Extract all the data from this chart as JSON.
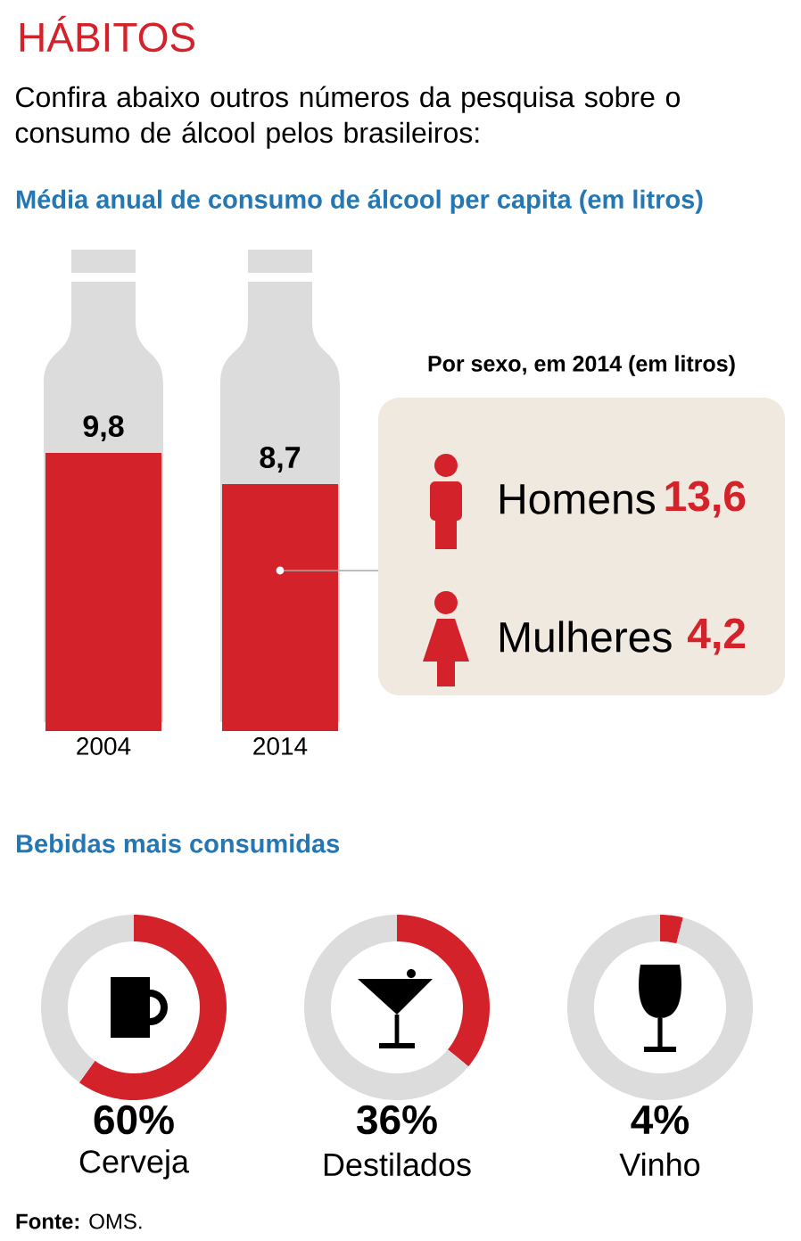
{
  "chart_data": [
    {
      "type": "other",
      "title": "HÁBITOS",
      "subtitle": "Confira abaixo outros números da pesquisa sobre o consumo de álcool pelos brasileiros:",
      "annotations": [
        "**Fonte:** OMS."
      ]
    },
    {
      "type": "bar",
      "title": "Média anual de consumo de álcool per capita (em litros)",
      "categories": [
        "2004",
        "2014"
      ],
      "values": [
        9.8,
        8.7
      ],
      "value_labels": [
        "9,8",
        "8,7"
      ],
      "color": "#d3222a",
      "tick_labels": "x"
    },
    {
      "type": "other",
      "title": "Por sexo, em 2014 (em litros)",
      "categories": [
        "Homens",
        "Mulheres"
      ],
      "values": [
        13.6,
        4.2
      ],
      "value_labels": [
        "13,6",
        "4,2"
      ]
    },
    {
      "type": "donut",
      "title": "Bebidas mais consumidas",
      "xlabel": "Cerveja",
      "categories": [
        null,
        null
      ],
      "values": [
        60,
        40
      ],
      "annotations": [
        "60%"
      ],
      "colors": [
        "#d3222a",
        "#dcdcdc"
      ]
    },
    {
      "type": "donut",
      "xlabel": "Destilados",
      "categories": [
        null,
        null
      ],
      "values": [
        36,
        64
      ],
      "annotations": [
        "36%"
      ],
      "colors": [
        "#d3222a",
        "#dcdcdc"
      ]
    },
    {
      "type": "donut",
      "xlabel": "Vinho",
      "categories": [
        null,
        null
      ],
      "values": [
        4,
        96
      ],
      "annotations": [
        "4%"
      ],
      "colors": [
        "#d3222a",
        "#dcdcdc"
      ]
    }
  ]
}
